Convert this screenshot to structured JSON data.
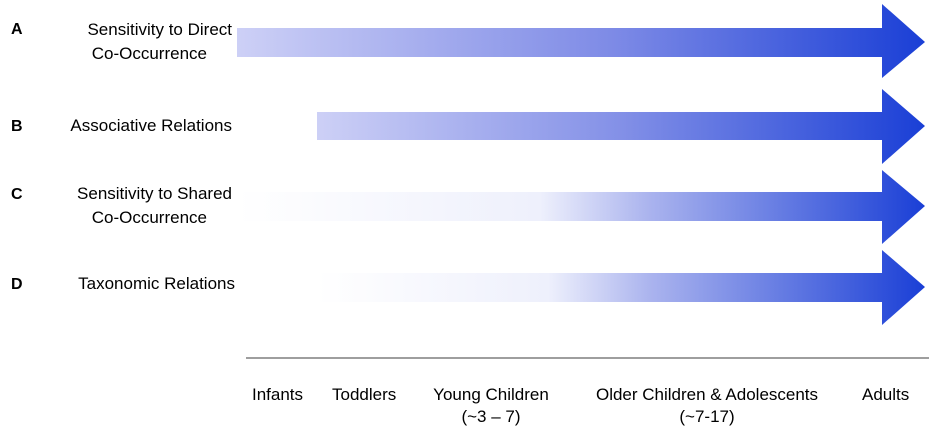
{
  "rows": [
    {
      "letter": "A",
      "label_line1": "Sensitivity to Direct",
      "label_line2": "Co-Occurrence"
    },
    {
      "letter": "B",
      "label_line1": "Associative Relations",
      "label_line2": ""
    },
    {
      "letter": "C",
      "label_line1": "Sensitivity to Shared",
      "label_line2": "Co-Occurrence"
    },
    {
      "letter": "D",
      "label_line1": "Taxonomic Relations",
      "label_line2": ""
    }
  ],
  "stages": [
    {
      "label": "Infants",
      "sub": ""
    },
    {
      "label": "Toddlers",
      "sub": ""
    },
    {
      "label": "Young Children",
      "sub": "(~3 – 7)"
    },
    {
      "label": "Older Children & Adolescents",
      "sub": "(~7-17)"
    },
    {
      "label": "Adults",
      "sub": ""
    }
  ],
  "colors": {
    "arrow_dark": "#1a3fd6",
    "arrow_light": "#c9cdf5",
    "axis_line": "#7f7f7f"
  }
}
